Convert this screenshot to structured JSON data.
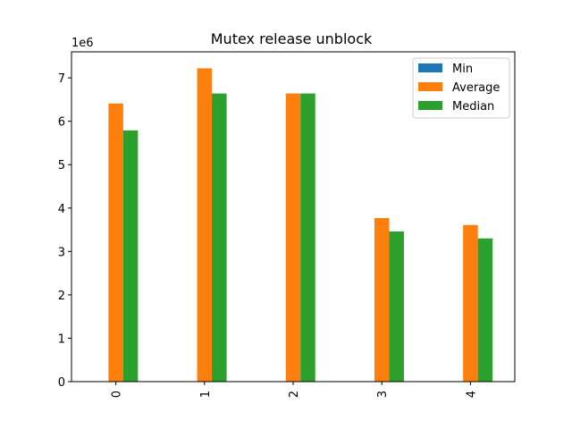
{
  "chart_data": {
    "type": "bar",
    "title": "Mutex release unblock",
    "xlabel": "",
    "ylabel": "",
    "y_offset_label": "1e6",
    "categories": [
      "0",
      "1",
      "2",
      "3",
      "4"
    ],
    "ylim": [
      0,
      7.6
    ],
    "yticks": [
      0,
      1,
      2,
      3,
      4,
      5,
      6,
      7
    ],
    "series": [
      {
        "name": "Min",
        "color": "#1f77b4",
        "values": [
          0,
          0,
          0,
          0,
          0
        ]
      },
      {
        "name": "Average",
        "color": "#ff7f0e",
        "values": [
          6.41,
          7.22,
          6.64,
          3.77,
          3.61
        ]
      },
      {
        "name": "Median",
        "color": "#2ca02c",
        "values": [
          5.79,
          6.64,
          6.64,
          3.46,
          3.3
        ]
      }
    ],
    "legend": {
      "placement": "top-right",
      "entries": [
        "Min",
        "Average",
        "Median"
      ]
    },
    "grid": false
  }
}
